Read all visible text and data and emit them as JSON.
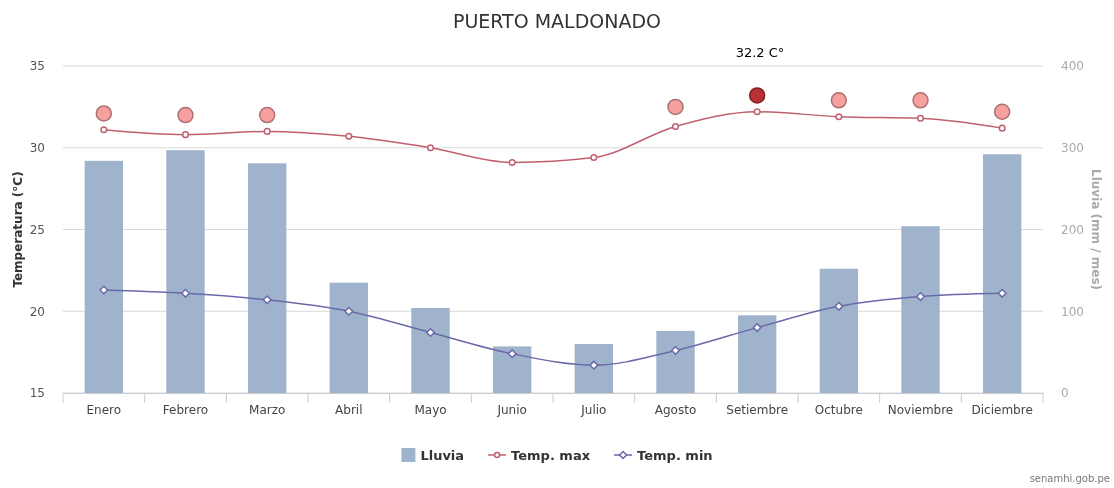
{
  "chart_data": {
    "type": "bar",
    "title": "PUERTO MALDONADO",
    "ylabel": "Temperatura (°C)",
    "y2label": "Lluvia (mm / mes)",
    "categories": [
      "Enero",
      "Febrero",
      "Marzo",
      "Abril",
      "Mayo",
      "Junio",
      "Julio",
      "Agosto",
      "Setiembre",
      "Octubre",
      "Noviembre",
      "Diciembre"
    ],
    "series": [
      {
        "name": "Lluvia",
        "axis": "y2",
        "color": "#9fb3cc",
        "values": [
          284,
          297,
          281,
          135,
          104,
          57,
          60,
          76,
          95,
          152,
          204,
          292
        ]
      },
      {
        "name": "Temp. max",
        "type": "line",
        "axis": "y",
        "color": "#c0606e",
        "marker": "circle",
        "values": [
          31.1,
          30.8,
          31.0,
          30.7,
          30.0,
          29.1,
          29.4,
          31.3,
          32.2,
          31.9,
          31.8,
          31.2
        ]
      },
      {
        "name": "Temp. min",
        "type": "line",
        "axis": "y",
        "color": "#6a6aaa",
        "marker": "diamond",
        "values": [
          21.3,
          21.1,
          20.7,
          20.0,
          18.7,
          17.4,
          16.7,
          17.6,
          19.0,
          20.3,
          20.9,
          21.1
        ]
      },
      {
        "type": "scatter",
        "axis": "y",
        "marker": "circle",
        "colors": [
          "#f7a0a0",
          "#f7a0a0",
          "#f7a0a0",
          null,
          null,
          null,
          null,
          "#f7a0a0",
          "#b83030",
          "#f7a0a0",
          "#f7a0a0",
          "#f7a0a0"
        ],
        "values": [
          32.1,
          32.0,
          32.0,
          null,
          null,
          null,
          null,
          32.5,
          33.2,
          32.9,
          32.9,
          32.2
        ]
      }
    ],
    "ylim": [
      15,
      35
    ],
    "yticks": [
      15,
      20,
      25,
      30,
      35
    ],
    "y2lim": [
      0,
      400
    ],
    "y2ticks": [
      0,
      100,
      200,
      300,
      400
    ],
    "grid": "y",
    "legend": "bottom",
    "annotations": [
      "32.2 C°",
      "senamhi.gob.pe"
    ]
  }
}
